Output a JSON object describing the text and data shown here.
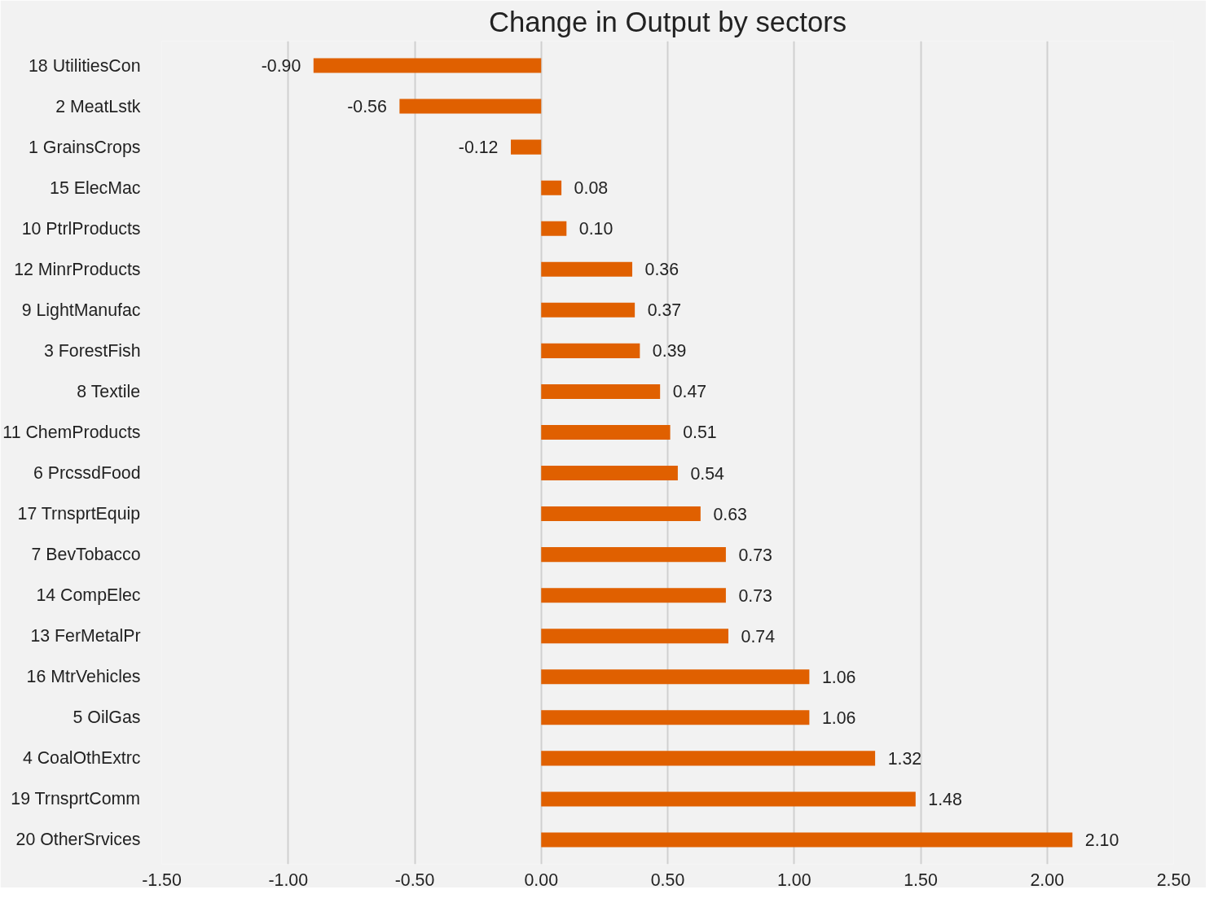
{
  "chart_data": {
    "type": "bar",
    "orientation": "horizontal",
    "title": "Change in Output by sectors",
    "categories": [
      "18 UtilitiesCon",
      "2 MeatLstk",
      "1 GrainsCrops",
      "15 ElecMac",
      "10 PtrlProducts",
      "12 MinrProducts",
      "9 LightManufac",
      "3 ForestFish",
      "8 Textile",
      "11 ChemProducts",
      "6 PrcssdFood",
      "17 TrnsprtEquip",
      "7 BevTobacco",
      "14 CompElec",
      "13 FerMetalPr",
      "16 MtrVehicles",
      "5 OilGas",
      "4 CoalOthExtrc",
      "19 TrnsprtComm",
      "20 OtherSrvices"
    ],
    "values": [
      -0.9,
      -0.56,
      -0.12,
      0.08,
      0.1,
      0.36,
      0.37,
      0.39,
      0.47,
      0.51,
      0.54,
      0.63,
      0.73,
      0.73,
      0.74,
      1.06,
      1.06,
      1.32,
      1.48,
      2.1
    ],
    "value_labels": [
      "-0.90",
      "-0.56",
      "-0.12",
      "0.08",
      "0.10",
      "0.36",
      "0.37",
      "0.39",
      "0.47",
      "0.51",
      "0.54",
      "0.63",
      "0.73",
      "0.73",
      "0.74",
      "1.06",
      "1.06",
      "1.32",
      "1.48",
      "2.10"
    ],
    "color": "#e06000",
    "xlim": [
      -1.5,
      2.5
    ],
    "xticks": [
      {
        "value": -1.5,
        "label": "-1.50"
      },
      {
        "value": -1.0,
        "label": "-1.00"
      },
      {
        "value": -0.5,
        "label": "-0.50"
      },
      {
        "value": 0,
        "label": "0.00"
      },
      {
        "value": 0.5,
        "label": "0.50"
      },
      {
        "value": 1.0,
        "label": "1.00"
      },
      {
        "value": 1.5,
        "label": "1.50"
      },
      {
        "value": 2.0,
        "label": "2.00"
      },
      {
        "value": 2.5,
        "label": "2.50"
      }
    ],
    "grid": "x"
  }
}
